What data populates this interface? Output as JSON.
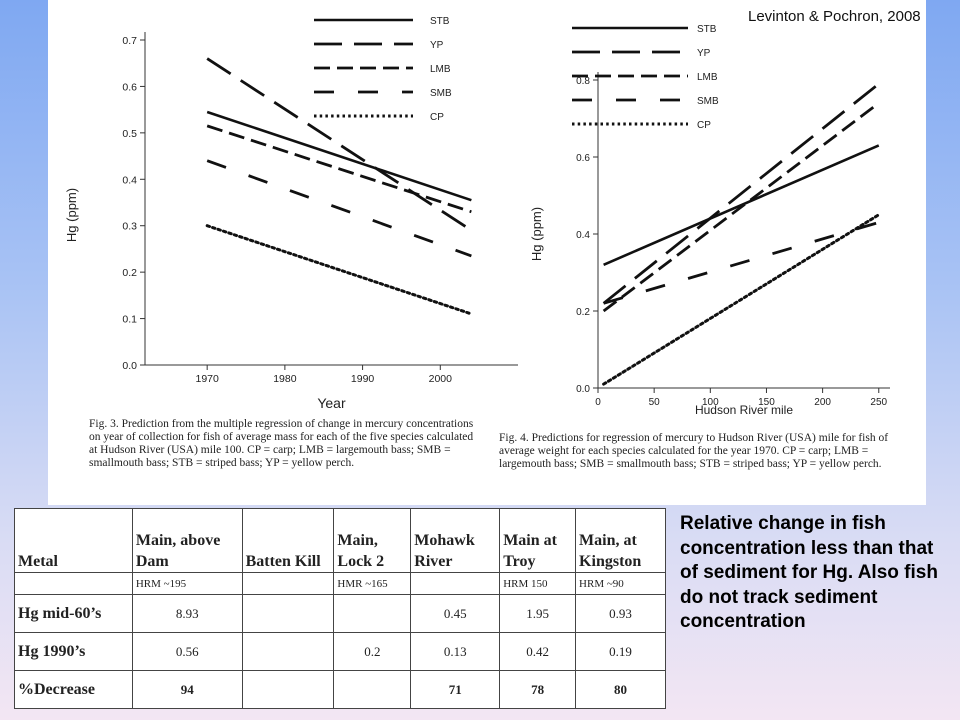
{
  "citation": "Levinton & Pochron, 2008",
  "note": "Relative change in fish concentration less than that of sediment for Hg. Also fish do not track sediment concentration",
  "chart_data": [
    {
      "type": "line",
      "xlabel": "Year",
      "ylabel": "Hg (ppm)",
      "xlim": [
        1962,
        2010
      ],
      "ylim": [
        0,
        0.7
      ],
      "xticks": [
        "1970",
        "1980",
        "1990",
        "2000"
      ],
      "xtick_values": [
        1970,
        1980,
        1990,
        2000
      ],
      "yticks": [
        "0.0",
        "0.1",
        "0.2",
        "0.3",
        "0.4",
        "0.5",
        "0.6",
        "0.7"
      ],
      "ytick_values": [
        0,
        0.1,
        0.2,
        0.3,
        0.4,
        0.5,
        0.6,
        0.7
      ],
      "legend_position": "top-right",
      "series": [
        {
          "name": "STB",
          "style": "solid",
          "x": [
            1970,
            2004
          ],
          "y": [
            0.545,
            0.355
          ]
        },
        {
          "name": "YP",
          "style": "longdash",
          "x": [
            1970,
            2004
          ],
          "y": [
            0.66,
            0.29
          ]
        },
        {
          "name": "LMB",
          "style": "dash",
          "x": [
            1970,
            2004
          ],
          "y": [
            0.515,
            0.33
          ]
        },
        {
          "name": "SMB",
          "style": "sparsedash",
          "x": [
            1970,
            2004
          ],
          "y": [
            0.44,
            0.235
          ]
        },
        {
          "name": "CP",
          "style": "dotted",
          "x": [
            1970,
            2004
          ],
          "y": [
            0.3,
            0.11
          ]
        }
      ],
      "caption": "Fig. 3. Prediction from the multiple regression of change in mercury concentrations on year of collection for fish of average mass for each of the five species calculated at Hudson River (USA) mile 100. CP = carp; LMB = largemouth bass; SMB = smallmouth bass; STB = striped bass; YP = yellow perch."
    },
    {
      "type": "line",
      "xlabel": "Hudson River mile",
      "ylabel": "Hg (ppm)",
      "xlim": [
        0,
        260
      ],
      "ylim": [
        0,
        0.8
      ],
      "xticks": [
        "0",
        "50",
        "100",
        "150",
        "200",
        "250"
      ],
      "xtick_values": [
        0,
        50,
        100,
        150,
        200,
        250
      ],
      "yticks": [
        "0.0",
        "0.2",
        "0.4",
        "0.6",
        "0.8"
      ],
      "ytick_values": [
        0,
        0.2,
        0.4,
        0.6,
        0.8
      ],
      "legend_position": "top-left",
      "series": [
        {
          "name": "STB",
          "style": "solid",
          "x": [
            5,
            250
          ],
          "y": [
            0.32,
            0.63
          ]
        },
        {
          "name": "YP",
          "style": "longdash",
          "x": [
            5,
            250
          ],
          "y": [
            0.22,
            0.79
          ]
        },
        {
          "name": "LMB",
          "style": "dash",
          "x": [
            5,
            250
          ],
          "y": [
            0.2,
            0.74
          ]
        },
        {
          "name": "SMB",
          "style": "sparsedash",
          "x": [
            5,
            250
          ],
          "y": [
            0.22,
            0.43
          ]
        },
        {
          "name": "CP",
          "style": "dotted",
          "x": [
            5,
            250
          ],
          "y": [
            0.01,
            0.45
          ]
        }
      ],
      "caption": "Fig. 4. Predictions for regression of mercury to Hudson River (USA) mile for fish of average weight for each species calculated for the year 1970. CP = carp; LMB = largemouth bass; SMB = smallmouth bass; STB = striped bass; YP = yellow perch."
    },
    {
      "type": "table",
      "columns": [
        "Metal",
        "Main, above Dam",
        "Batten Kill",
        "Main, Lock 2",
        "Mohawk River",
        "Main at Troy",
        "Main, at Kingston"
      ],
      "rows": [
        [
          "",
          "HRM ~195",
          "",
          "HMR ~165",
          "",
          "HRM 150",
          "HRM ~90"
        ],
        [
          "Hg mid-60’s",
          "8.93",
          "",
          "",
          "0.45",
          "1.95",
          "0.93"
        ],
        [
          "Hg 1990’s",
          "0.56",
          "",
          "0.2",
          "0.13",
          "0.42",
          "0.19"
        ],
        [
          "%Decrease",
          "94",
          "",
          "",
          "71",
          "78",
          "80"
        ]
      ]
    }
  ]
}
